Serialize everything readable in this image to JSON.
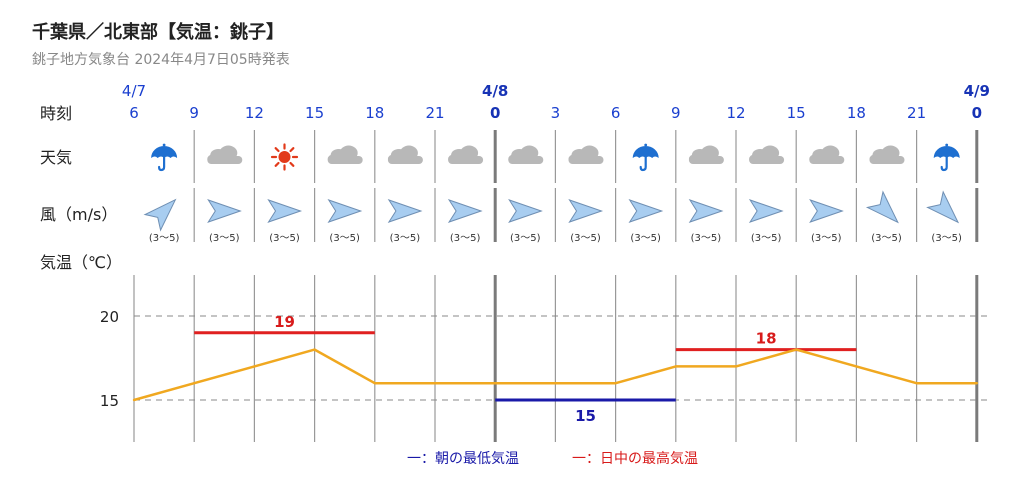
{
  "header": {
    "title": "千葉県／北東部【気温：銚子】",
    "subtitle": "銚子地方気象台 2024年4月7日05時発表"
  },
  "row_labels": {
    "time": "時刻",
    "weather": "天気",
    "wind": "風（m/s）",
    "temp": "気温（℃）"
  },
  "dates": [
    {
      "label": "4/7",
      "bold": false,
      "col": 0
    },
    {
      "label": "4/8",
      "bold": true,
      "col": 6
    },
    {
      "label": "4/9",
      "bold": true,
      "col": 14
    }
  ],
  "hours": [
    "6",
    "9",
    "12",
    "15",
    "18",
    "21",
    "0",
    "3",
    "6",
    "9",
    "12",
    "15",
    "18",
    "21",
    "0"
  ],
  "weather": [
    "rain",
    "cloudy",
    "sunny",
    "cloudy",
    "cloudy",
    "cloudy",
    "cloudy",
    "cloudy",
    "rain",
    "cloudy",
    "cloudy",
    "cloudy",
    "cloudy",
    "rain"
  ],
  "wind": [
    {
      "dir": "NW",
      "speed": "(3〜5)"
    },
    {
      "dir": "E",
      "speed": "(3〜5)"
    },
    {
      "dir": "E",
      "speed": "(3〜5)"
    },
    {
      "dir": "E",
      "speed": "(3〜5)"
    },
    {
      "dir": "E",
      "speed": "(3〜5)"
    },
    {
      "dir": "E",
      "speed": "(3〜5)"
    },
    {
      "dir": "E",
      "speed": "(3〜5)"
    },
    {
      "dir": "E",
      "speed": "(3〜5)"
    },
    {
      "dir": "E",
      "speed": "(3〜5)"
    },
    {
      "dir": "E",
      "speed": "(3〜5)"
    },
    {
      "dir": "E",
      "speed": "(3〜5)"
    },
    {
      "dir": "E",
      "speed": "(3〜5)"
    },
    {
      "dir": "NE",
      "speed": "(3〜5)"
    },
    {
      "dir": "NE",
      "speed": "(3〜5)"
    }
  ],
  "colors": {
    "temp_line": "#f0a820",
    "max": "#e02020",
    "min": "#1a1aa8",
    "grid": "#999999",
    "arrow_fill": "#a8cdf0",
    "arrow_stroke": "#6f8fb3",
    "rain_icon": "#1e6fd0",
    "cloud_icon": "#b8b8b8",
    "sun_icon": "#e23a1a"
  },
  "chart_data": {
    "type": "line",
    "x": [
      "4/7 6",
      "9",
      "12",
      "15",
      "18",
      "21",
      "4/8 0",
      "3",
      "6",
      "9",
      "12",
      "15",
      "18",
      "21",
      "4/9 0"
    ],
    "series": [
      {
        "values": [
          15,
          16,
          17,
          18,
          16,
          16,
          16,
          16,
          16,
          17,
          17,
          18,
          17,
          16,
          16
        ]
      }
    ],
    "daily_max": [
      {
        "value": 19,
        "label": "19",
        "from": "4/7 9",
        "to": "4/7 18"
      },
      {
        "value": 18,
        "label": "18",
        "from": "4/8 9",
        "to": "4/8 18"
      }
    ],
    "daily_min": [
      {
        "value": 15,
        "label": "15",
        "from": "4/8 0",
        "to": "4/8 9"
      }
    ],
    "yticks": [
      "15",
      "20"
    ],
    "ylim": [
      12,
      23
    ],
    "grid": true,
    "legend": {
      "position": "bottom-center",
      "min_label": "一：朝の最低気温",
      "max_label": "一：日中の最高気温"
    }
  }
}
